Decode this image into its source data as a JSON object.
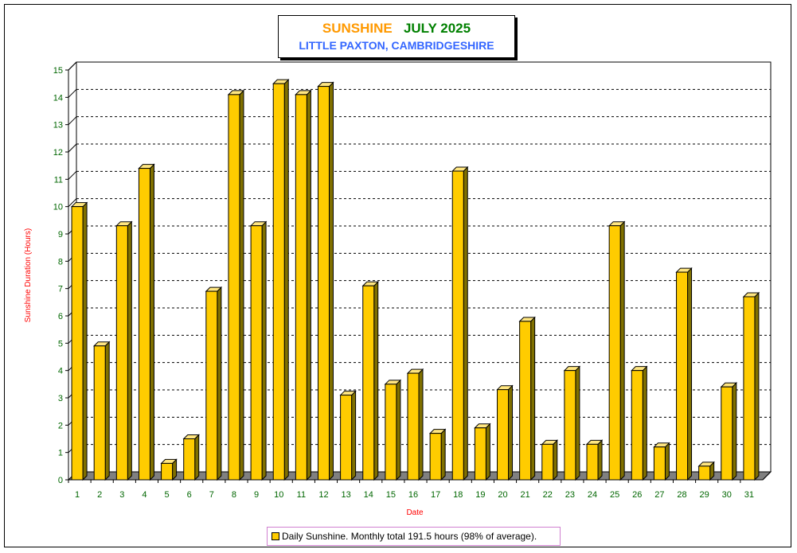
{
  "colors": {
    "bar_front": "#ffcc00",
    "bar_side": "#807000",
    "bar_top": "#ffe680",
    "floor": "#808080",
    "title_orange": "#ff9900",
    "title_green": "#008000",
    "title_blue": "#3366ff",
    "axis_label": "#ff0000",
    "tick_label": "#006600"
  },
  "chart_data": {
    "type": "bar",
    "title": "SUNSHINE",
    "title_period": "JULY 2025",
    "subtitle": "LITTLE PAXTON, CAMBRIDGESHIRE",
    "xlabel": "Date",
    "ylabel": "Sunshine Duration (Hours)",
    "ylim": [
      0,
      15
    ],
    "yticks": [
      0,
      1,
      2,
      3,
      4,
      5,
      6,
      7,
      8,
      9,
      10,
      11,
      12,
      13,
      14,
      15
    ],
    "grid": "horizontal-dashed",
    "categories": [
      "1",
      "2",
      "3",
      "4",
      "5",
      "6",
      "7",
      "8",
      "9",
      "10",
      "11",
      "12",
      "13",
      "14",
      "15",
      "16",
      "17",
      "18",
      "19",
      "20",
      "21",
      "22",
      "23",
      "24",
      "25",
      "26",
      "27",
      "28",
      "29",
      "30",
      "31"
    ],
    "series": [
      {
        "name": "Daily Sunshine. Monthly total 191.5 hours (98% of average).",
        "values": [
          10.0,
          4.9,
          9.3,
          11.4,
          0.6,
          1.5,
          6.9,
          14.1,
          9.3,
          14.5,
          14.1,
          14.4,
          3.1,
          7.1,
          3.5,
          3.9,
          1.7,
          11.3,
          1.9,
          3.3,
          5.8,
          1.3,
          4.0,
          1.3,
          9.3,
          4.0,
          1.2,
          7.6,
          0.5,
          3.4,
          6.7
        ]
      }
    ],
    "legend_position": "bottom-center"
  }
}
